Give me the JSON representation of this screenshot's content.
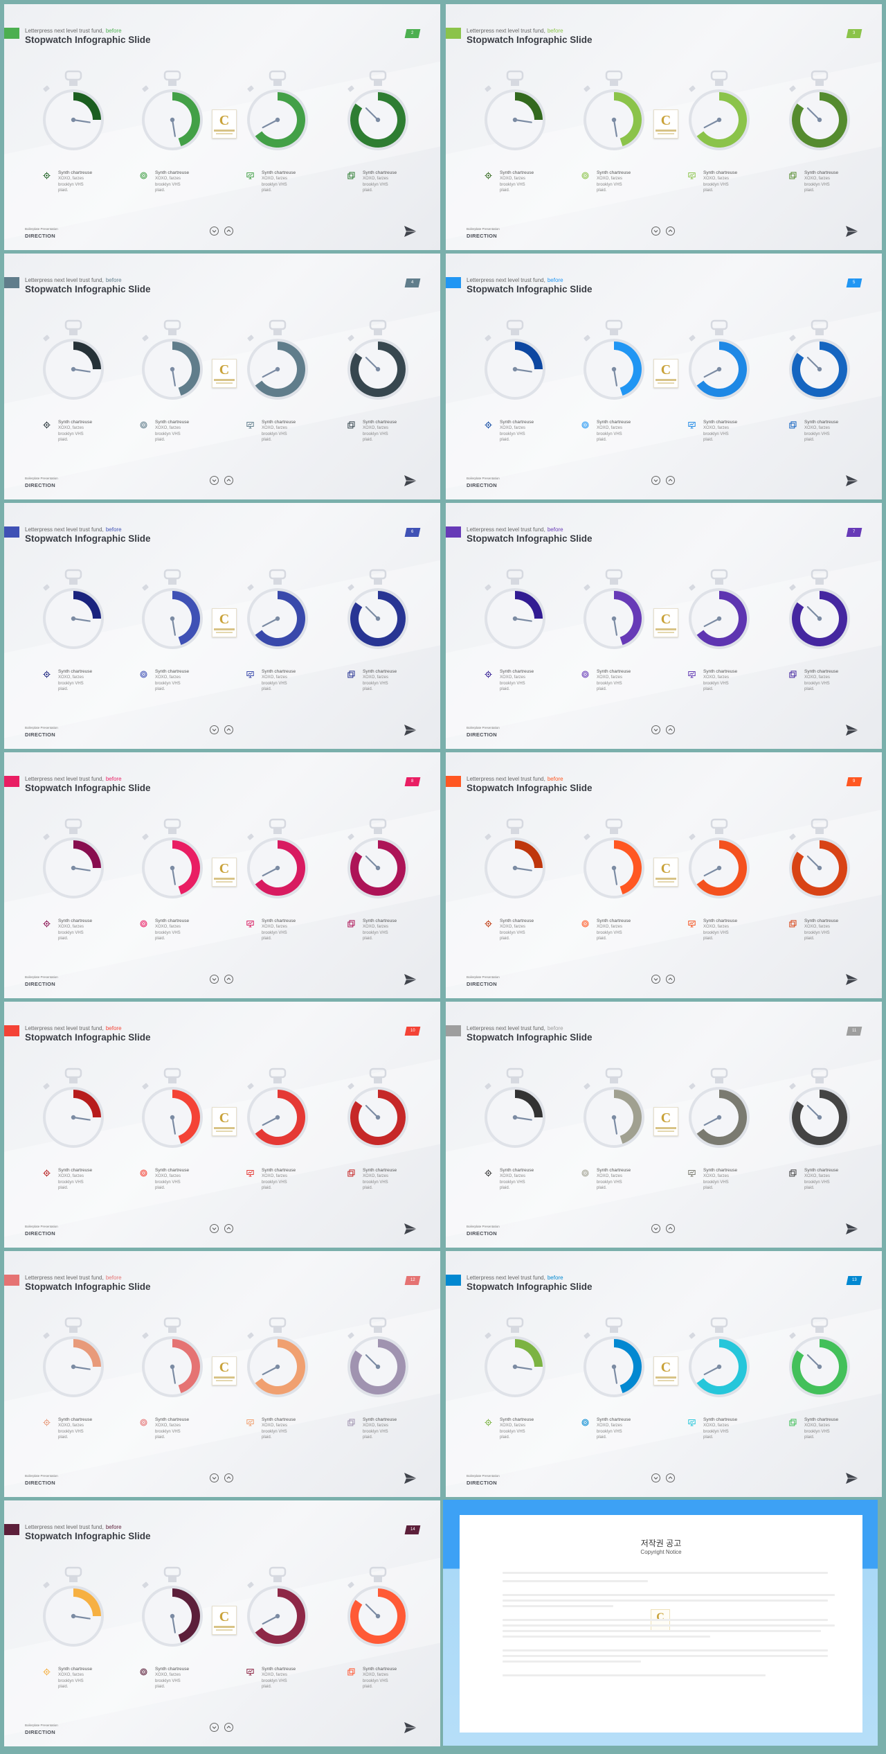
{
  "common": {
    "subtitle_prefix": "Letterpress next level trust fund,",
    "subtitle_highlight": "before",
    "title": "Stopwatch Infographic Slide",
    "item_label": "Synth chartreuse",
    "item_desc": "XOXO, farzes\nbrooklyn VHS\nplaid.",
    "footer_sub": "Boilerplate Presentation",
    "footer_title": "DIRECTION",
    "logo_letter": "C"
  },
  "icons": [
    "gear-icon",
    "target-icon",
    "monitor-icon",
    "copy-icon"
  ],
  "watch_fractions": [
    0.25,
    0.45,
    0.65,
    0.85
  ],
  "slides": [
    {
      "page": "2",
      "accent": "#4caf50",
      "colors": [
        "#1b5e20",
        "#43a047",
        "#43a047",
        "#2e7d32"
      ]
    },
    {
      "page": "3",
      "accent": "#8bc34a",
      "colors": [
        "#33691e",
        "#8bc34a",
        "#8bc34a",
        "#558b2f"
      ]
    },
    {
      "page": "4",
      "accent": "#607d8b",
      "colors": [
        "#263238",
        "#607d8b",
        "#607d8b",
        "#37474f"
      ]
    },
    {
      "page": "5",
      "accent": "#2196f3",
      "colors": [
        "#0d47a1",
        "#2196f3",
        "#1e88e5",
        "#1565c0"
      ]
    },
    {
      "page": "6",
      "accent": "#3f51b5",
      "colors": [
        "#1a237e",
        "#3f51b5",
        "#3949ab",
        "#283593"
      ]
    },
    {
      "page": "7",
      "accent": "#673ab7",
      "colors": [
        "#311b92",
        "#673ab7",
        "#5e35b1",
        "#4527a0"
      ]
    },
    {
      "page": "8",
      "accent": "#e91e63",
      "colors": [
        "#880e4f",
        "#e91e63",
        "#d81b60",
        "#ad1457"
      ]
    },
    {
      "page": "9",
      "accent": "#ff5722",
      "colors": [
        "#bf360c",
        "#ff5722",
        "#f4511e",
        "#d84315"
      ]
    },
    {
      "page": "10",
      "accent": "#f44336",
      "colors": [
        "#b71c1c",
        "#f44336",
        "#e53935",
        "#c62828"
      ]
    },
    {
      "page": "11",
      "accent": "#9e9e9e",
      "colors": [
        "#333333",
        "#a0a090",
        "#7a7a70",
        "#444444"
      ]
    },
    {
      "page": "12",
      "accent": "#e57373",
      "colors": [
        "#e89a7a",
        "#e57373",
        "#f0a070",
        "#a093b0"
      ]
    },
    {
      "page": "13",
      "accent": "#0288d1",
      "colors": [
        "#7cb342",
        "#0288d1",
        "#26c6da",
        "#43c05a"
      ]
    },
    {
      "page": "14",
      "accent": "#5c1f3a",
      "colors": [
        "#f6b042",
        "#5c1f3a",
        "#8e2847",
        "#ff5a36"
      ]
    }
  ],
  "notice": {
    "title": "저작권 공고",
    "subtitle": "Copyright Notice"
  }
}
